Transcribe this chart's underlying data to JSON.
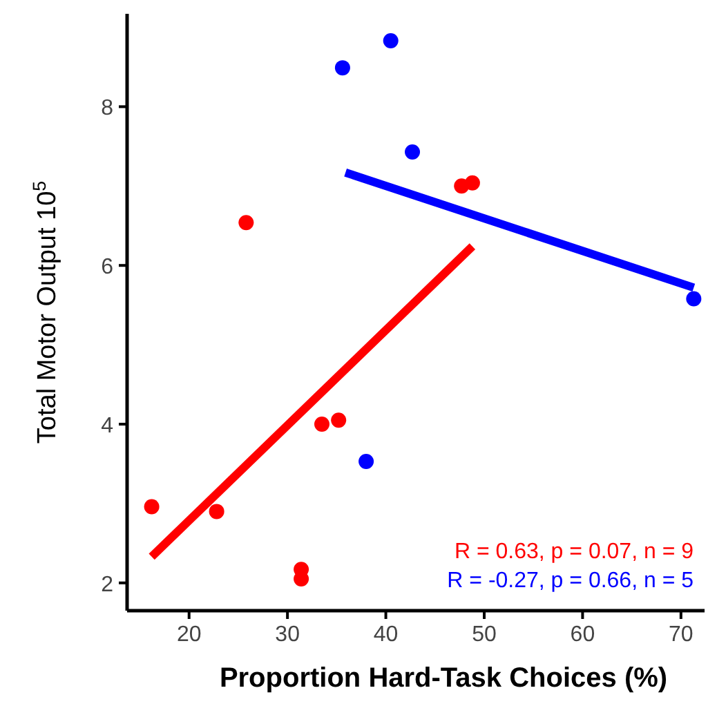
{
  "chart_data": {
    "type": "scatter",
    "xlabel": "Proportion Hard-Task Choices (%)",
    "ylabel": "Total Motor Output  10$^{5}$",
    "xlim": [
      13.7,
      72.4
    ],
    "ylim": [
      1.65,
      9.17
    ],
    "xticks": [
      20,
      30,
      40,
      50,
      60,
      70
    ],
    "yticks": [
      2,
      4,
      6,
      8
    ],
    "grid": false,
    "marker": "circle",
    "series": [
      {
        "color": "#ff0000",
        "x": [
          16.2,
          22.8,
          25.8,
          31.4,
          31.4,
          33.5,
          35.2,
          47.7,
          48.8
        ],
        "values": [
          2.96,
          2.9,
          6.54,
          2.17,
          2.05,
          4.0,
          4.05,
          7.0,
          7.04
        ]
      },
      {
        "color": "#0000ff",
        "x": [
          35.6,
          40.5,
          42.7,
          38.0,
          71.3
        ],
        "values": [
          8.49,
          8.83,
          7.43,
          3.53,
          5.58
        ]
      },
      {
        "type": "line",
        "marker": "none",
        "color": "#ff0000",
        "x": [
          16.2,
          48.8
        ],
        "values": [
          2.33,
          6.24
        ]
      },
      {
        "type": "line",
        "marker": "none",
        "color": "#0000ff",
        "x": [
          35.9,
          71.3
        ],
        "values": [
          7.17,
          5.72
        ]
      }
    ],
    "annotations": [
      "R = 0.63, p = 0.07, n = 9",
      "R = -0.27, p = 0.66, n = 5"
    ]
  }
}
